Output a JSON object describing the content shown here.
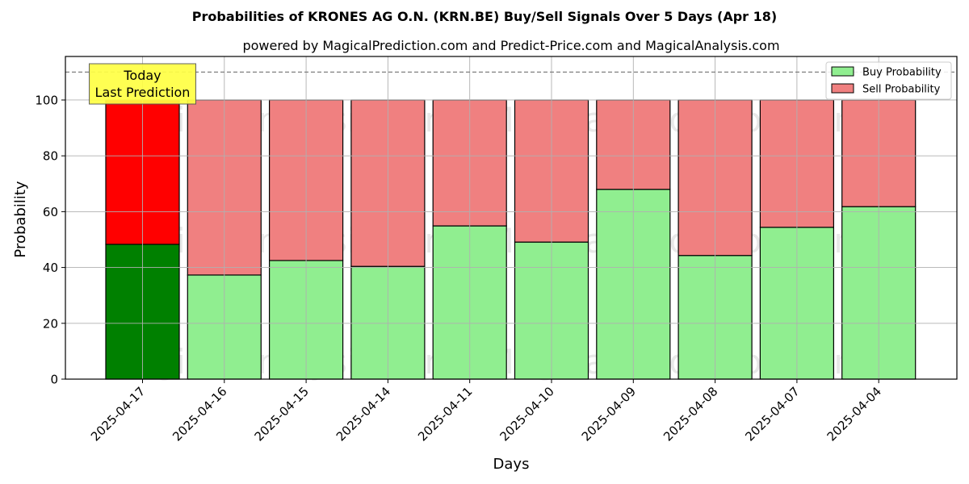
{
  "chart_data": {
    "type": "bar",
    "stacked": true,
    "title": "Probabilities of KRONES AG O.N. (KRN.BE) Buy/Sell Signals Over 5 Days (Apr 18)",
    "subtitle": "powered by MagicalPrediction.com and Predict-Price.com and MagicalAnalysis.com",
    "xlabel": "Days",
    "ylabel": "Probability",
    "ylim": [
      0,
      115.6
    ],
    "yticks": [
      0,
      20,
      40,
      60,
      80,
      100
    ],
    "grid": true,
    "legend_position": "upper right",
    "categories": [
      "2025-04-17",
      "2025-04-16",
      "2025-04-15",
      "2025-04-14",
      "2025-04-11",
      "2025-04-10",
      "2025-04-09",
      "2025-04-08",
      "2025-04-07",
      "2025-04-04"
    ],
    "series": [
      {
        "name": "Buy Probability",
        "color": "#90ee90",
        "highlight_color": "#008000",
        "values": [
          48.3,
          37.3,
          42.5,
          40.4,
          54.9,
          49.1,
          68.0,
          44.3,
          54.4,
          61.8
        ]
      },
      {
        "name": "Sell Probability",
        "color": "#f08080",
        "highlight_color": "#ff0000",
        "values": [
          51.7,
          62.7,
          57.5,
          59.6,
          45.1,
          50.9,
          32.0,
          55.7,
          45.6,
          38.2
        ]
      }
    ],
    "highlight_index": 0,
    "reference_line": {
      "y": 110,
      "style": "dashed",
      "color": "#808080"
    },
    "annotation": {
      "lines": [
        "Today",
        "Last Prediction"
      ],
      "bg": "#ffff44",
      "bar_index": 0
    },
    "watermarks": [
      "MagicalAnalysis.com",
      "MagicalPrediction.com"
    ]
  }
}
